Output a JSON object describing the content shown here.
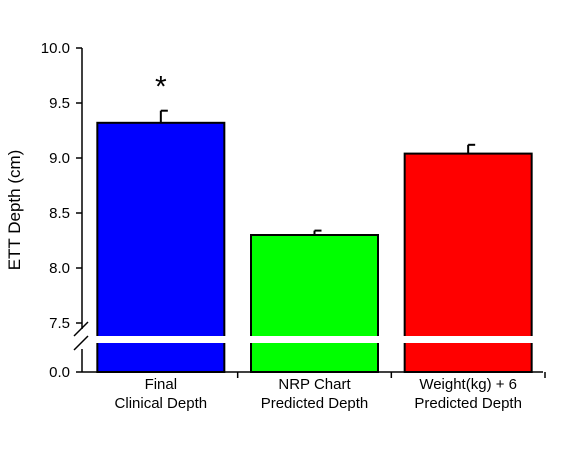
{
  "chart_data": {
    "type": "bar",
    "ylabel": "ETT Depth (cm)",
    "categories": [
      [
        "Final",
        "Clinical Depth"
      ],
      [
        "NRP Chart",
        "Predicted Depth"
      ],
      [
        "Weight(kg) + 6",
        "Predicted Depth"
      ]
    ],
    "values": [
      9.32,
      8.3,
      9.04
    ],
    "errors": [
      0.11,
      0.04,
      0.08
    ],
    "colors": [
      "#0000ff",
      "#00ff00",
      "#ff0000"
    ],
    "annotations": [
      "*",
      "",
      ""
    ],
    "y_ticks": [
      "10.0",
      "9.5",
      "9.0",
      "8.5",
      "8.0",
      "7.5",
      "0.0"
    ],
    "ylim": [
      7.35,
      10.0
    ],
    "axis_break": true,
    "grid": false
  }
}
